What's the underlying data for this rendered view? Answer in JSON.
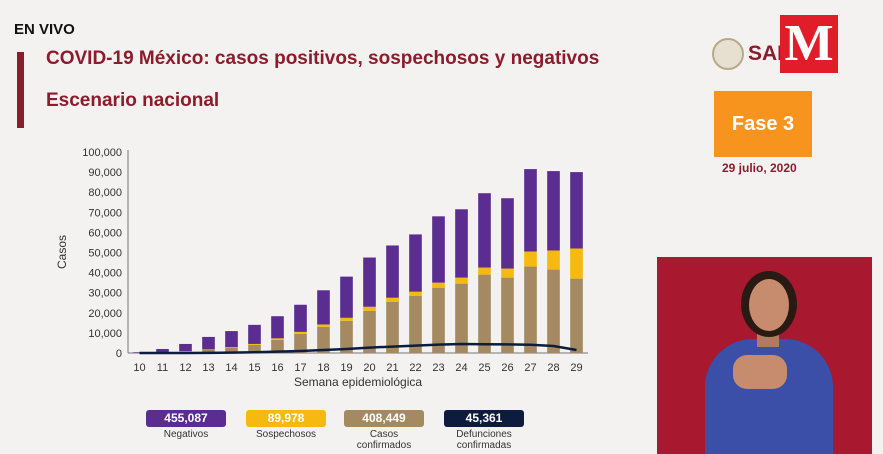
{
  "header": {
    "live": "EN VIVO",
    "title": "COVID-19 México: casos positivos, sospechosos y negativos",
    "subtitle": "Escenario nacional",
    "salud": "SAL",
    "logo": "M",
    "phase": "Fase 3",
    "date": "29 julio, 2020"
  },
  "legend": [
    {
      "value": "455,087",
      "label": "Negativos",
      "color": "#5c2d91"
    },
    {
      "value": "89,978",
      "label": "Sospechosos",
      "color": "#f5b90f"
    },
    {
      "value": "408,449",
      "label": "Casos confirmados",
      "color": "#a58a61"
    },
    {
      "value": "45,361",
      "label": "Defunciones confirmadas",
      "color": "#0d1b3e"
    }
  ],
  "chart_data": {
    "type": "bar",
    "stacked": true,
    "xlabel": "Semana epidemiológica",
    "ylabel": "Casos",
    "ylim": [
      0,
      100000
    ],
    "yticks": [
      "0",
      "10,000",
      "20,000",
      "30,000",
      "40,000",
      "50,000",
      "60,000",
      "70,000",
      "80,000",
      "90,000",
      "100,000"
    ],
    "categories": [
      "10",
      "11",
      "12",
      "13",
      "14",
      "15",
      "16",
      "17",
      "18",
      "19",
      "20",
      "21",
      "22",
      "23",
      "24",
      "25",
      "26",
      "27",
      "28",
      "29"
    ],
    "series": [
      {
        "name": "Casos confirmados",
        "color": "#a58a61",
        "values": [
          50,
          300,
          800,
          1500,
          2500,
          4000,
          6500,
          9500,
          13000,
          16000,
          21000,
          25500,
          28500,
          32500,
          34500,
          39000,
          37500,
          43000,
          41500,
          37000
        ]
      },
      {
        "name": "Sospechosos",
        "color": "#f5b90f",
        "values": [
          20,
          100,
          200,
          300,
          400,
          500,
          800,
          1000,
          1200,
          1500,
          2000,
          2000,
          2000,
          2500,
          3000,
          3500,
          4500,
          7500,
          9500,
          15000
        ]
      },
      {
        "name": "Negativos",
        "color": "#5c2d91",
        "values": [
          300,
          1600,
          3500,
          6200,
          8000,
          9500,
          11000,
          13500,
          17000,
          20500,
          24500,
          26000,
          28500,
          33000,
          34000,
          37000,
          35000,
          41000,
          39500,
          38000
        ]
      },
      {
        "name": "Defunciones confirmadas",
        "type": "line",
        "color": "#0d1b3e",
        "values": [
          0,
          5,
          20,
          60,
          200,
          400,
          700,
          1000,
          1500,
          2000,
          2700,
          3200,
          3700,
          4200,
          4500,
          4400,
          4300,
          4100,
          3500,
          1500
        ]
      }
    ]
  }
}
